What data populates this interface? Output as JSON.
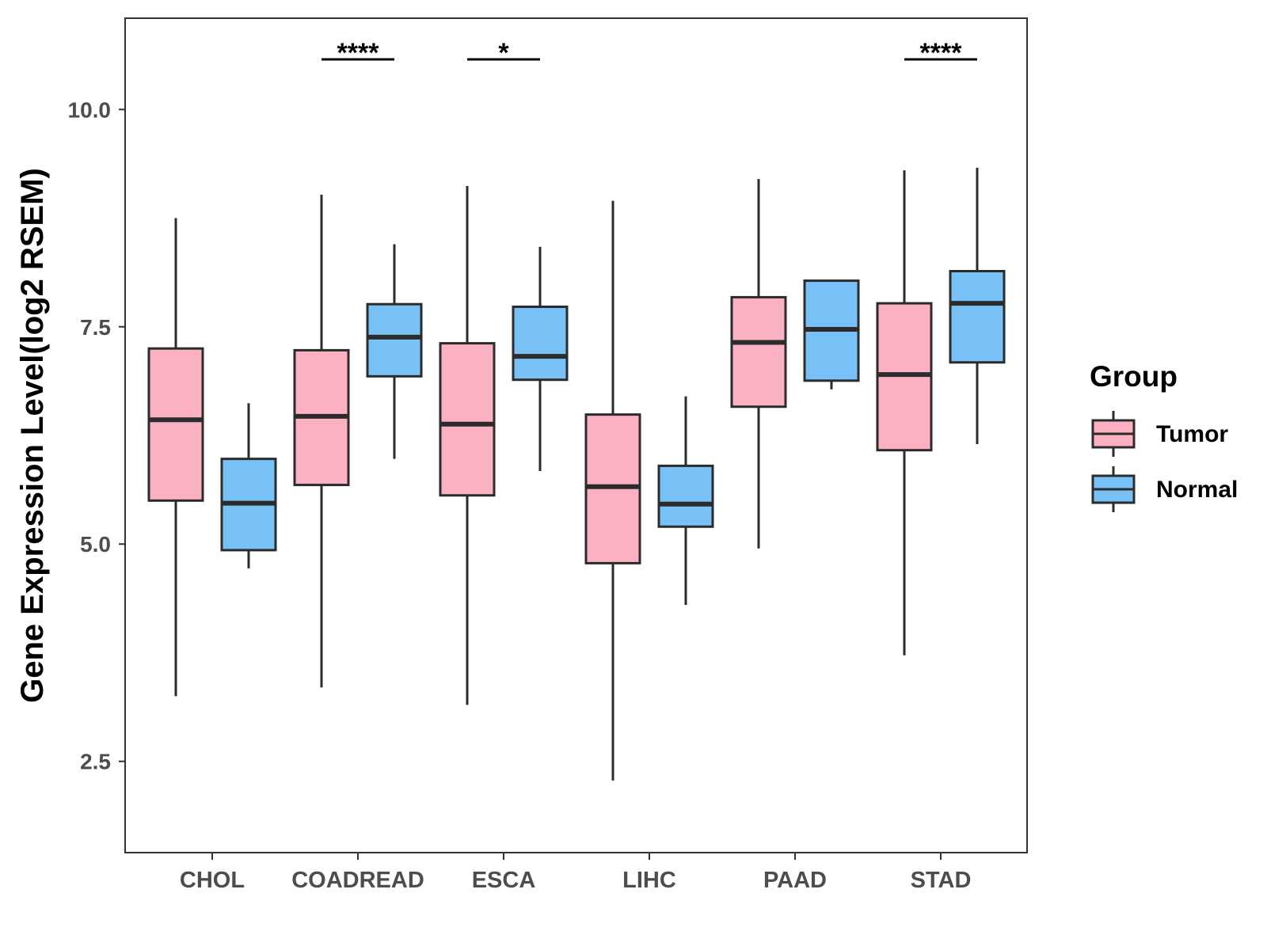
{
  "chart_data": {
    "type": "boxplot",
    "title": "",
    "xlabel": "",
    "ylabel": "Gene Expression Level(log2 RSEM)",
    "ylim": [
      1.45,
      11.05
    ],
    "yticks": [
      2.5,
      5.0,
      7.5,
      10.0
    ],
    "ytick_labels": [
      "2.5",
      "5.0",
      "7.5",
      "10.0"
    ],
    "categories": [
      "CHOL",
      "COADREAD",
      "ESCA",
      "LIHC",
      "PAAD",
      "STAD"
    ],
    "series": [
      {
        "name": "Tumor",
        "color": "#FBB1C2",
        "boxes": [
          {
            "category": "CHOL",
            "min": 3.25,
            "q1": 5.5,
            "median": 6.43,
            "q3": 7.25,
            "max": 8.75
          },
          {
            "category": "COADREAD",
            "min": 3.35,
            "q1": 5.68,
            "median": 6.47,
            "q3": 7.23,
            "max": 9.02
          },
          {
            "category": "ESCA",
            "min": 3.15,
            "q1": 5.56,
            "median": 6.38,
            "q3": 7.31,
            "max": 9.12
          },
          {
            "category": "LIHC",
            "min": 2.28,
            "q1": 4.78,
            "median": 5.66,
            "q3": 6.49,
            "max": 8.95
          },
          {
            "category": "PAAD",
            "min": 4.95,
            "q1": 6.58,
            "median": 7.32,
            "q3": 7.84,
            "max": 9.2
          },
          {
            "category": "STAD",
            "min": 3.72,
            "q1": 6.08,
            "median": 6.95,
            "q3": 7.77,
            "max": 9.3
          }
        ]
      },
      {
        "name": "Normal",
        "color": "#77C1F7",
        "boxes": [
          {
            "category": "CHOL",
            "min": 4.72,
            "q1": 4.93,
            "median": 5.47,
            "q3": 5.98,
            "max": 6.62
          },
          {
            "category": "COADREAD",
            "min": 5.98,
            "q1": 6.93,
            "median": 7.38,
            "q3": 7.76,
            "max": 8.45
          },
          {
            "category": "ESCA",
            "min": 5.84,
            "q1": 6.89,
            "median": 7.16,
            "q3": 7.73,
            "max": 8.42
          },
          {
            "category": "LIHC",
            "min": 4.3,
            "q1": 5.2,
            "median": 5.46,
            "q3": 5.9,
            "max": 6.7
          },
          {
            "category": "PAAD",
            "min": 6.78,
            "q1": 6.88,
            "median": 7.47,
            "q3": 8.03,
            "max": 8.03
          },
          {
            "category": "STAD",
            "min": 6.15,
            "q1": 7.09,
            "median": 7.77,
            "q3": 8.14,
            "max": 9.33
          }
        ]
      }
    ],
    "annotations": [
      {
        "category": "COADREAD",
        "label": "****"
      },
      {
        "category": "ESCA",
        "label": "*"
      },
      {
        "category": "STAD",
        "label": "****"
      }
    ],
    "legend": {
      "title": "Group",
      "position": "right",
      "entries": [
        "Tumor",
        "Normal"
      ]
    },
    "grid": false
  }
}
